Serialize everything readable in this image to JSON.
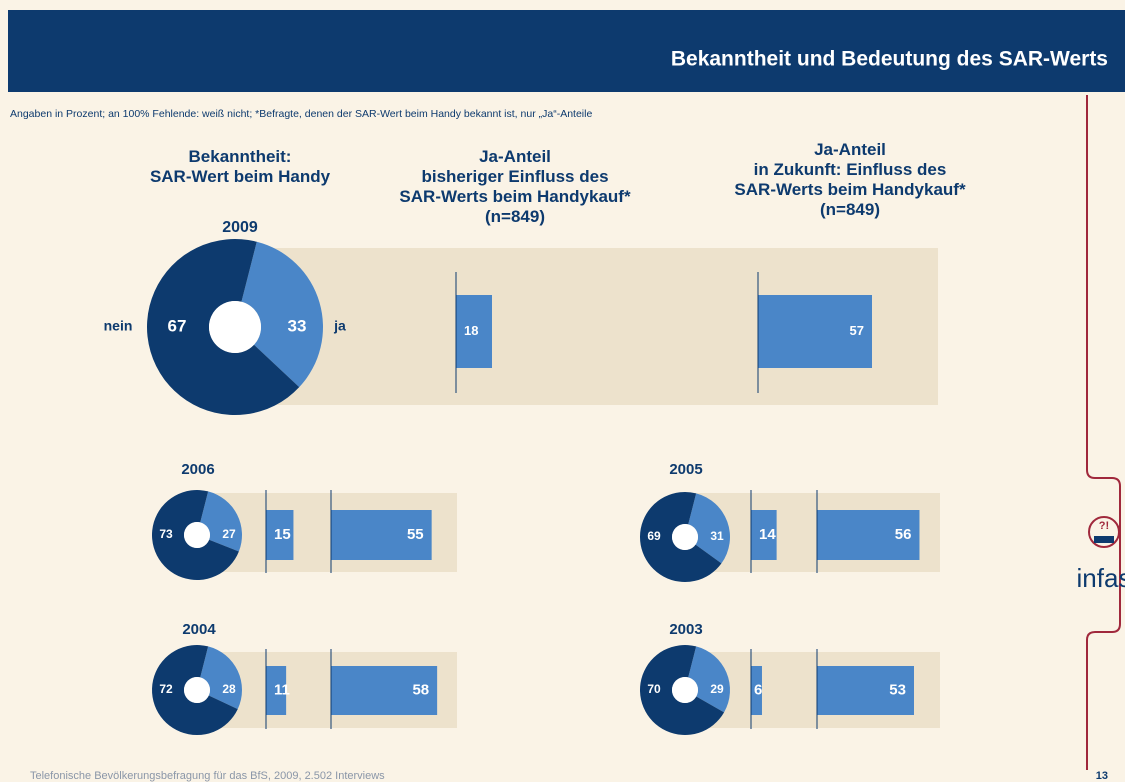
{
  "header": {
    "title": "Bekanntheit und Bedeutung des SAR-Werts",
    "subtitle": "Angaben in Prozent; an 100% Fehlende: weiß nicht; *Befragte, denen der SAR-Wert beim Handy bekannt ist, nur „Ja“-Anteile"
  },
  "column_titles": [
    "Bekanntheit:\nSAR-Wert beim Handy",
    "Ja-Anteil\nbisheriger Einfluss des\nSAR-Werts beim Handykauf*\n(n=849)",
    "Ja-Anteil\nin Zukunft: Einfluss des\nSAR-Werts beim Handykauf*\n(n=849)"
  ],
  "groups": [
    {
      "year": "2009",
      "pie": {
        "type": "pie",
        "categories": [
          "nein",
          "ja"
        ],
        "values": [
          67,
          33
        ],
        "colors": [
          "#0d3a6e",
          "#4a86c8"
        ]
      },
      "bars": {
        "type": "bar",
        "values": [
          18,
          57
        ],
        "color": "#4a86c8"
      }
    },
    {
      "year": "2006",
      "pie": {
        "type": "pie",
        "values": [
          73,
          27
        ],
        "colors": [
          "#0d3a6e",
          "#4a86c8"
        ]
      },
      "bars": {
        "type": "bar",
        "values": [
          15,
          55
        ],
        "color": "#4a86c8"
      }
    },
    {
      "year": "2005",
      "pie": {
        "type": "pie",
        "values": [
          69,
          31
        ],
        "colors": [
          "#0d3a6e",
          "#4a86c8"
        ]
      },
      "bars": {
        "type": "bar",
        "values": [
          14,
          56
        ],
        "color": "#4a86c8"
      }
    },
    {
      "year": "2004",
      "pie": {
        "type": "pie",
        "values": [
          72,
          28
        ],
        "colors": [
          "#0d3a6e",
          "#4a86c8"
        ]
      },
      "bars": {
        "type": "bar",
        "values": [
          11,
          58
        ],
        "color": "#4a86c8"
      }
    },
    {
      "year": "2003",
      "pie": {
        "type": "pie",
        "values": [
          70,
          29
        ],
        "colors": [
          "#0d3a6e",
          "#4a86c8"
        ]
      },
      "bars": {
        "type": "bar",
        "values": [
          6,
          53
        ],
        "color": "#4a86c8"
      }
    }
  ],
  "footer": "Telefonische Bevölkerungsbefragung für das BfS, 2009, 2.502 Interviews",
  "page_number": "13",
  "logo": "infas"
}
